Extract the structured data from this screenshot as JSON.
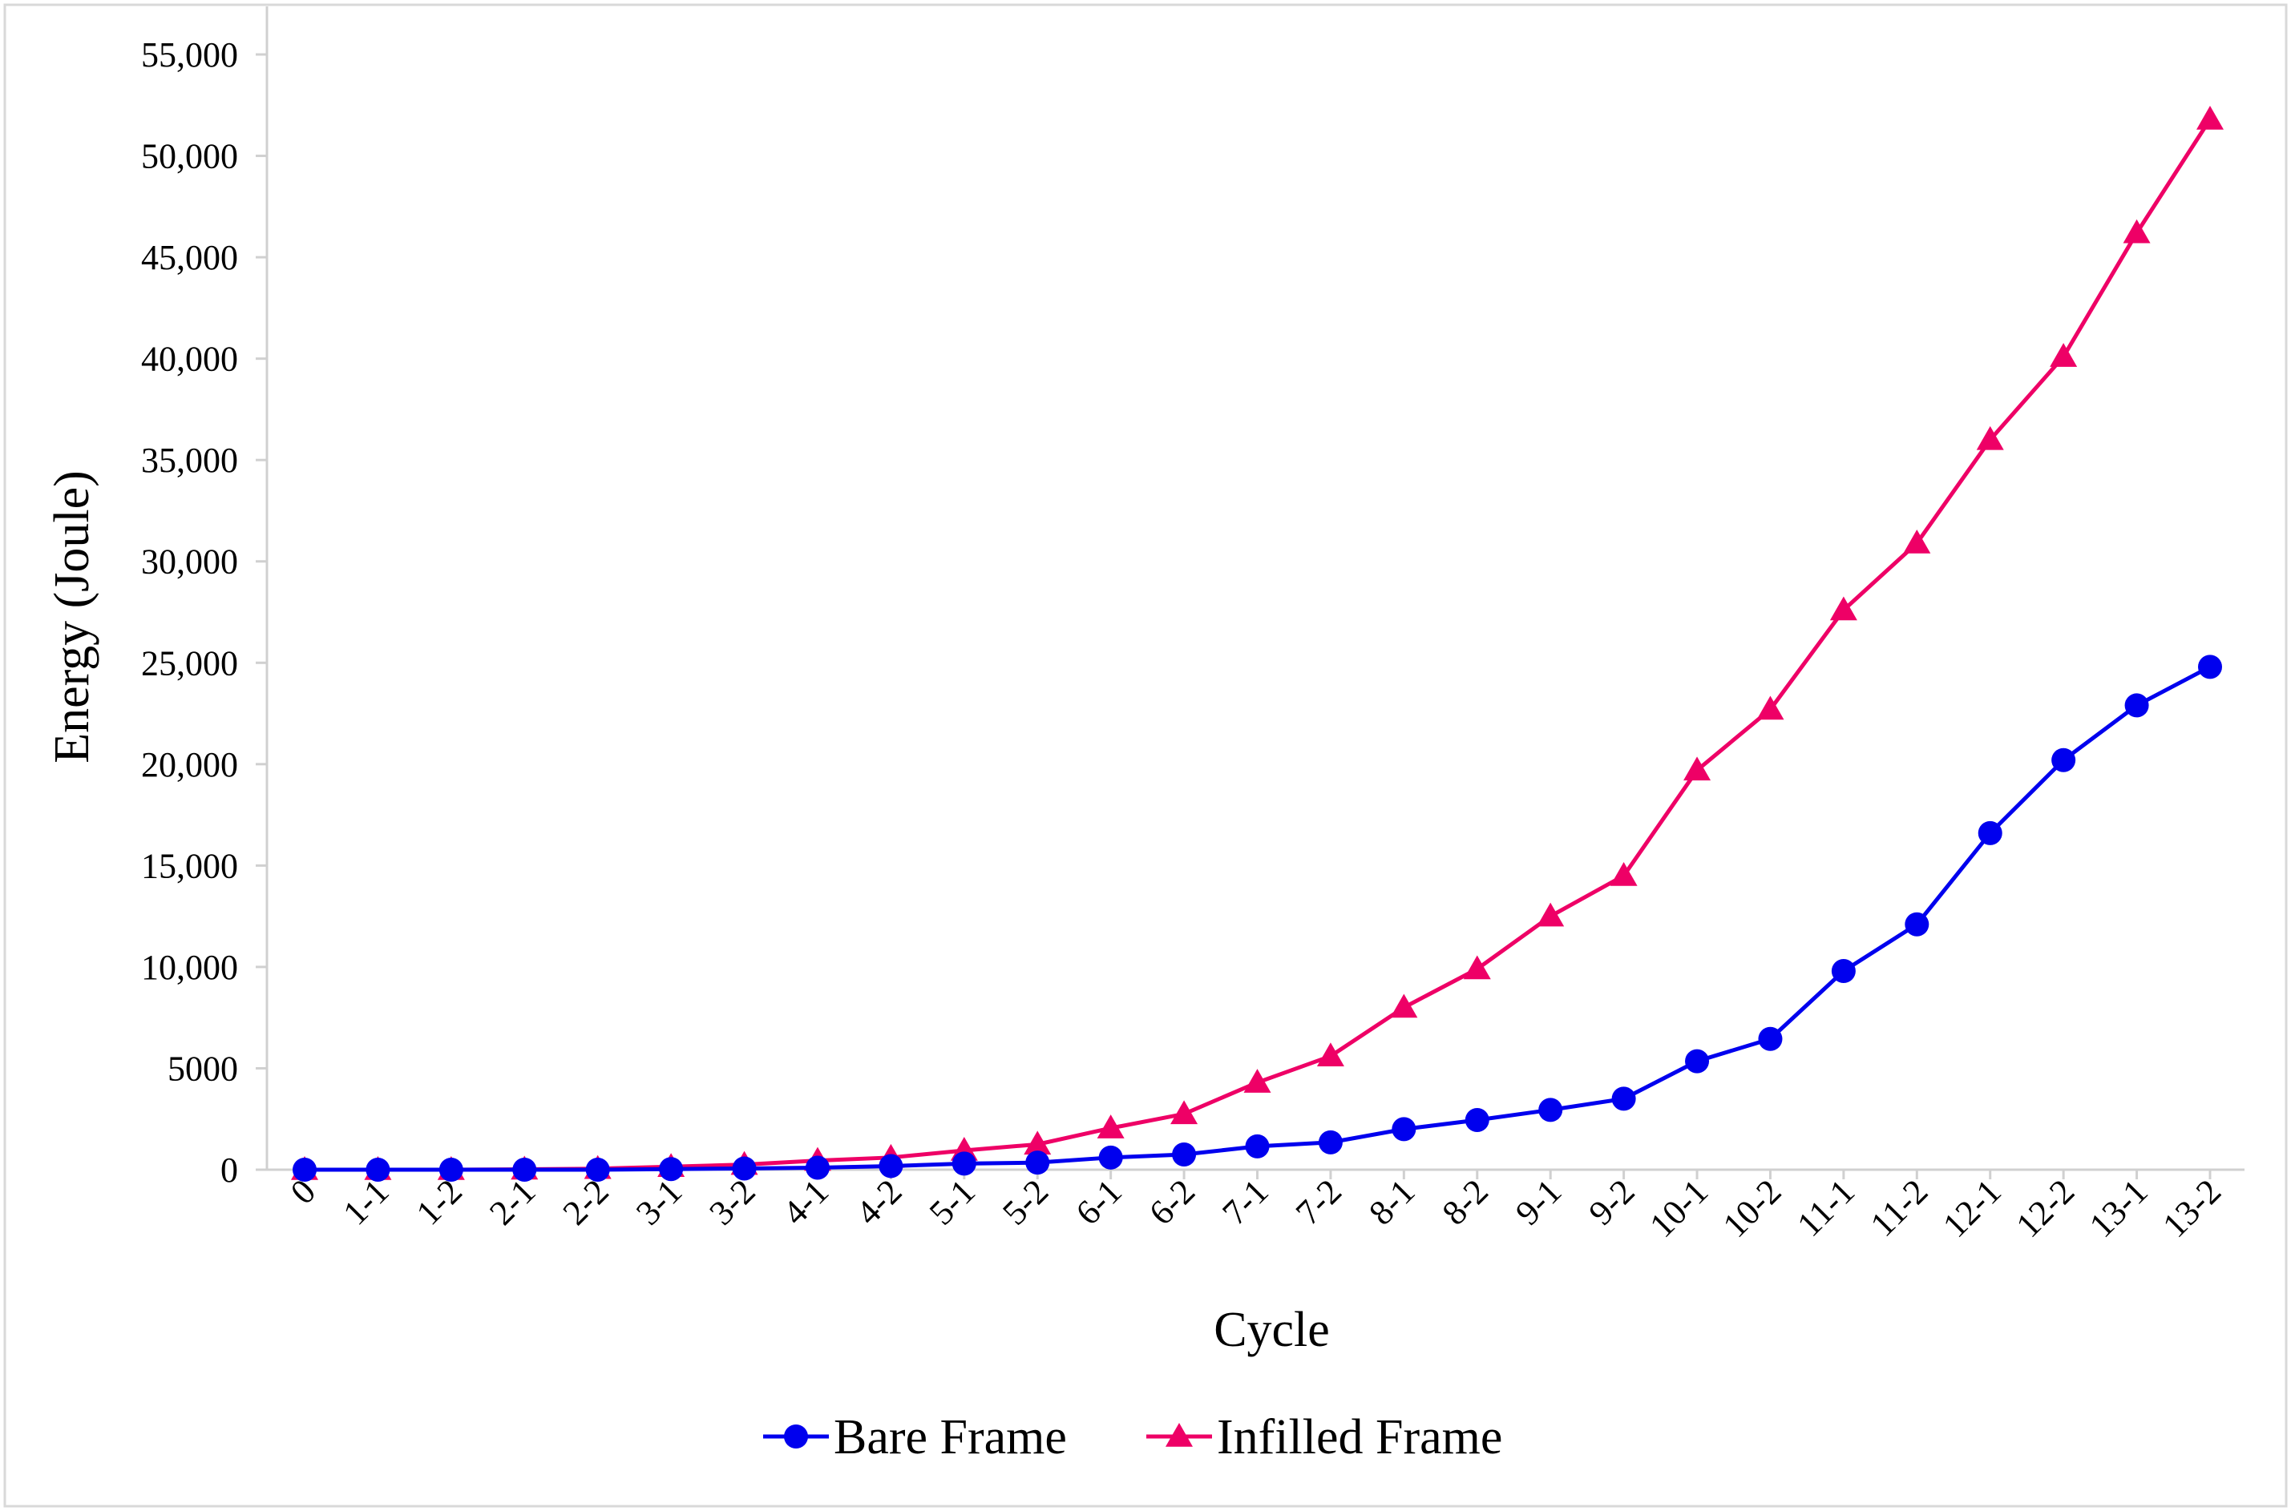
{
  "chart_data": {
    "type": "line",
    "title": "",
    "xlabel": "Cycle",
    "ylabel": "Energy (Joule)",
    "categories": [
      "0",
      "1-1",
      "1-2",
      "2-1",
      "2-2",
      "3-1",
      "3-2",
      "4-1",
      "4-2",
      "5-1",
      "5-2",
      "6-1",
      "6-2",
      "7-1",
      "7-2",
      "8-1",
      "8-2",
      "9-1",
      "9-2",
      "10-1",
      "10-2",
      "11-1",
      "11-2",
      "12-1",
      "12-2",
      "13-1",
      "13-2"
    ],
    "ylim": [
      0,
      55000
    ],
    "yticks": [
      0,
      5000,
      10000,
      15000,
      20000,
      25000,
      30000,
      35000,
      40000,
      45000,
      50000,
      55000
    ],
    "ytick_labels": [
      "0",
      "5000",
      "10,000",
      "15,000",
      "20,000",
      "25,000",
      "30,000",
      "35,000",
      "40,000",
      "45,000",
      "50,000",
      "55,000"
    ],
    "grid": false,
    "legend_position": "bottom",
    "series": [
      {
        "name": "Bare Frame",
        "color": "#0000ee",
        "marker": "circle",
        "values": [
          0,
          0,
          0,
          0,
          0,
          30,
          60,
          100,
          180,
          300,
          350,
          600,
          750,
          1150,
          1350,
          2000,
          2450,
          2950,
          3500,
          5350,
          6450,
          9800,
          12100,
          16600,
          20200,
          22900,
          24800
        ]
      },
      {
        "name": "Infilled Frame",
        "color": "#ee0066",
        "marker": "triangle",
        "values": [
          0,
          0,
          0,
          20,
          50,
          150,
          250,
          450,
          600,
          950,
          1250,
          2050,
          2750,
          4300,
          5600,
          8000,
          9900,
          12500,
          14500,
          19700,
          22700,
          27600,
          30900,
          36000,
          40100,
          46200,
          51800
        ]
      }
    ]
  }
}
